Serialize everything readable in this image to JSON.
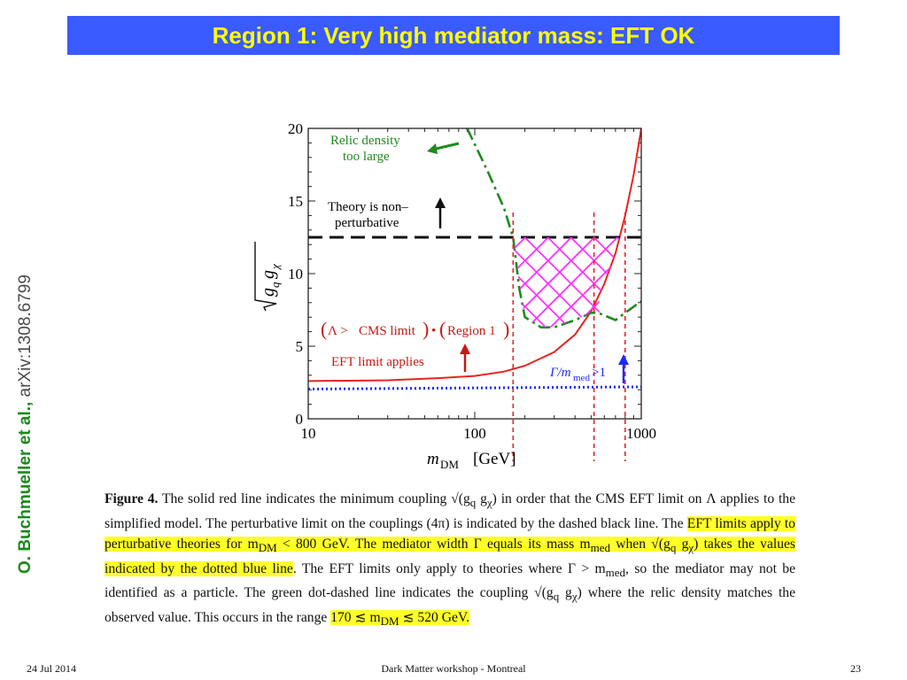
{
  "slide": {
    "title": "Region 1: Very high mediator mass: EFT OK",
    "credit_authors": "O. Buchmueller et al.,",
    "credit_arxiv": "arXiv:1308.6799",
    "footer_date": "24 Jul 2014",
    "footer_center": "Dark Matter workshop - Montreal",
    "footer_page": "23"
  },
  "colors": {
    "title_bg": "#3a5bff",
    "title_text": "#ffff00",
    "highlight": "#ffff2a",
    "red_line": "#e8231f",
    "green_line": "#1f8a1f",
    "blue_line": "#1a2cff",
    "hatch": "#ff33ff"
  },
  "chart_data": {
    "type": "line",
    "xscale": "log",
    "xlim": [
      10,
      1000
    ],
    "ylim": [
      0,
      20
    ],
    "xlabel_italic": "m",
    "xlabel_sub": "DM",
    "xlabel_unit": "[GeV]",
    "ylabel": "√(g_q g_χ)",
    "x_ticks": [
      "10",
      "100",
      "1000"
    ],
    "y_ticks": [
      "0",
      "5",
      "10",
      "15",
      "20"
    ],
    "series": [
      {
        "style": "solid-red",
        "x": [
          10,
          30,
          60,
          100,
          150,
          200,
          300,
          400,
          500,
          600,
          700,
          800,
          900,
          1000
        ],
        "y": [
          2.6,
          2.65,
          2.8,
          2.95,
          3.25,
          3.65,
          4.6,
          5.8,
          7.4,
          9.3,
          11.4,
          14.0,
          16.8,
          20.0
        ]
      },
      {
        "style": "dash-dot-green",
        "x": [
          90,
          120,
          150,
          170,
          185,
          200,
          250,
          300,
          400,
          500,
          550,
          700,
          800,
          1000
        ],
        "y": [
          20.0,
          17.0,
          14.5,
          12.5,
          9.0,
          7.0,
          6.3,
          6.3,
          6.8,
          7.3,
          7.3,
          6.8,
          7.3,
          8.1
        ]
      },
      {
        "style": "dashed-black",
        "x": [
          10,
          1000
        ],
        "y": [
          12.5,
          12.5
        ]
      },
      {
        "style": "dotted-blue",
        "x": [
          10,
          1000
        ],
        "y": [
          2.05,
          2.2
        ]
      }
    ],
    "vertical_lines": [
      170,
      520,
      800
    ],
    "annotations": {
      "relic_1": "Relic density",
      "relic_2": "too large",
      "theory_1": "Theory is non–",
      "theory_2": "perturbative",
      "lambda_a": "Λ >",
      "lambda_b": "CMS limit",
      "lambda_c": "Region 1",
      "eft": "EFT limit applies",
      "gamma": "Γ/m",
      "gamma_sub": "med",
      "gamma_tail": ">1"
    }
  },
  "caption": {
    "fig": "Figure 4.",
    "s1": " The solid red line indicates the minimum coupling √(g",
    "q": "q",
    "s1b": " g",
    "chi": "χ",
    "s1c": ") in order that the CMS EFT limit on Λ applies to the simplified model. The perturbative limit on the couplings (4π) is indicated by the dashed black line. The ",
    "h1": "EFT limits apply to perturbative theories for m",
    "h1sub": "DM",
    "h1b": " < 800 GeV. The mediator width Γ equals its mass m",
    "h1sub2": "med",
    "h1c": " when √(g",
    "h1q": "q",
    "h1d": " g",
    "h1chi": "χ",
    "h1e": ") takes the values indicated by the dotted blue line",
    "s2": ". The EFT limits only apply to theories where Γ > m",
    "s2sub": "med",
    "s2b": ", so the mediator may not be identified as a particle. The green dot-dashed line indicates the coupling √(g",
    "s2q": "q",
    "s2c": " g",
    "s2chi": "χ",
    "s2d": ") where the relic density matches the observed value. This occurs in the range ",
    "h2": "170 ≲ m",
    "h2sub": "DM",
    "h2b": " ≲ 520 GeV."
  }
}
